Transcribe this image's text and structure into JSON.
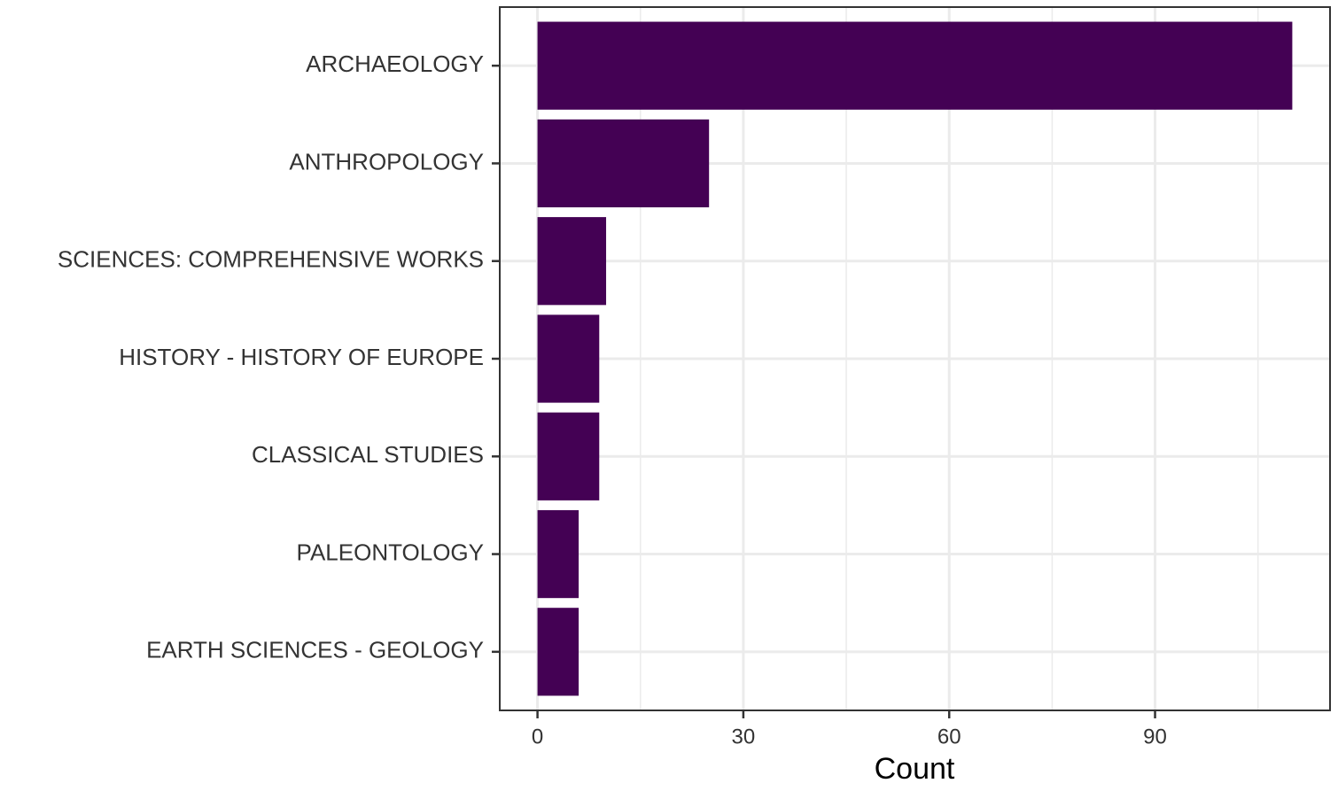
{
  "chart_data": {
    "type": "barh",
    "xlabel": "Count",
    "categories": [
      "ARCHAEOLOGY",
      "ANTHROPOLOGY",
      "SCIENCES: COMPREHENSIVE WORKS",
      "HISTORY - HISTORY OF EUROPE",
      "CLASSICAL STUDIES",
      "PALEONTOLOGY",
      "EARTH SCIENCES - GEOLOGY"
    ],
    "values": [
      110,
      25,
      10,
      9,
      9,
      6,
      6
    ],
    "color": "#440154",
    "xlim": [
      -5.5,
      115.5
    ],
    "xticks": [
      0,
      30,
      60,
      90
    ],
    "xminorticks": [
      15,
      45,
      75,
      105
    ],
    "grid": true
  }
}
